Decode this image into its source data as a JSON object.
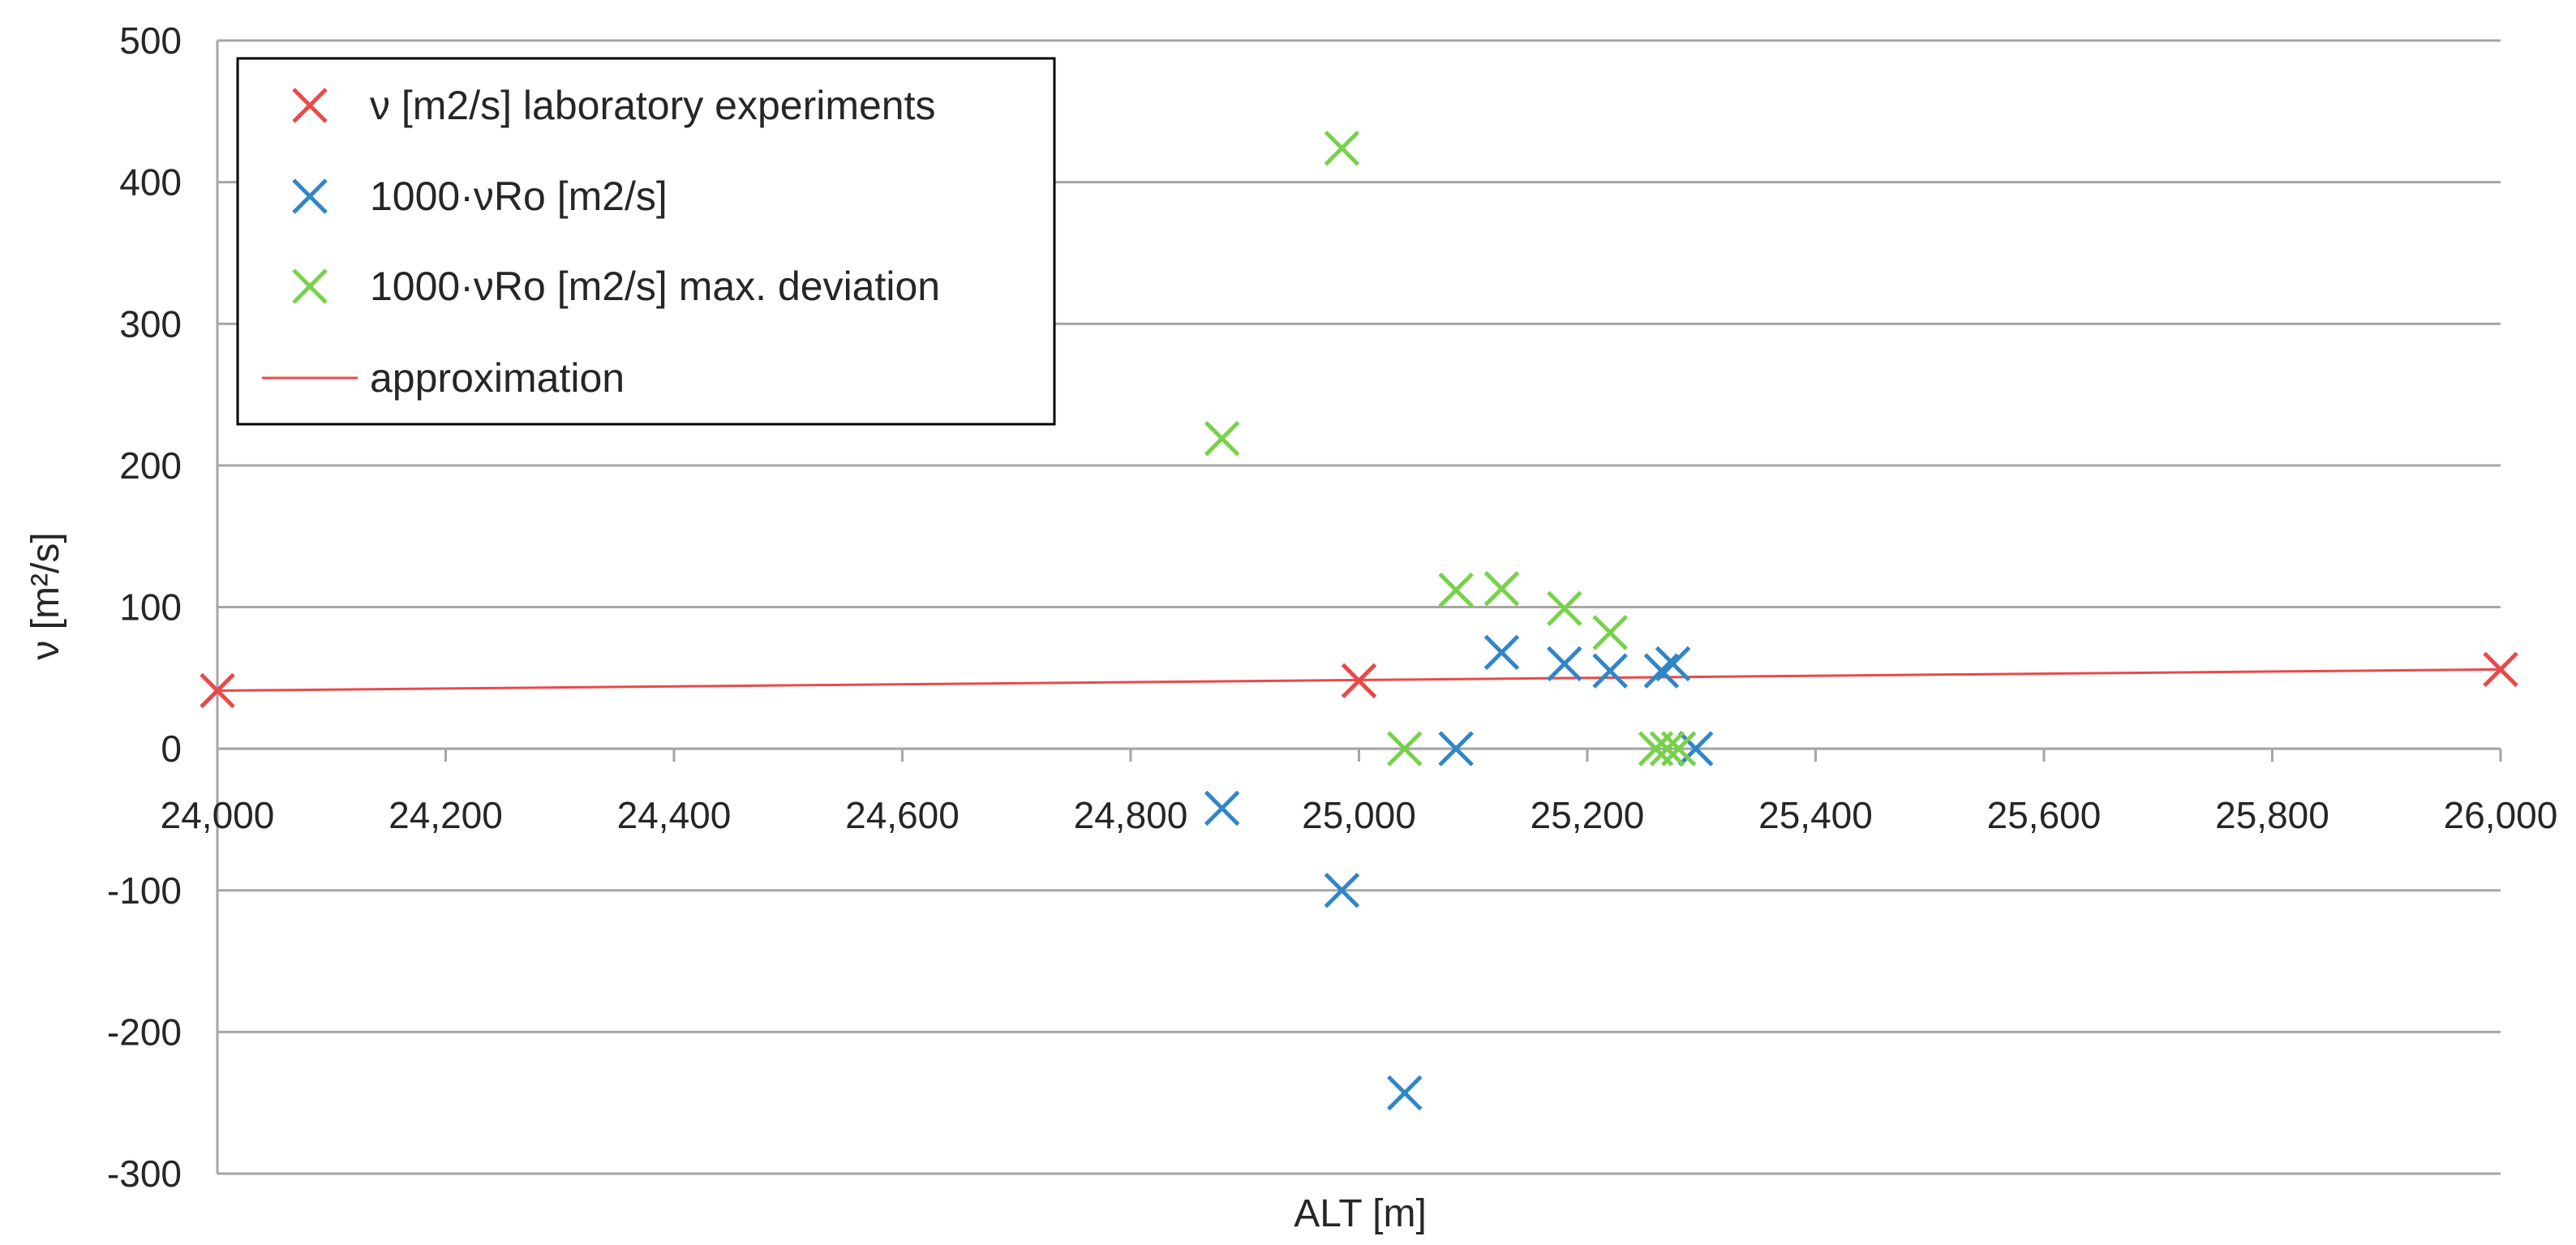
{
  "chart_data": {
    "type": "scatter",
    "title": "",
    "xlabel": "ALT [m]",
    "ylabel": "ν [m²/s]",
    "xlim": [
      24000,
      26000
    ],
    "ylim": [
      -300,
      500
    ],
    "xticks": [
      24000,
      24200,
      24400,
      24600,
      24800,
      25000,
      25200,
      25400,
      25600,
      25800,
      26000
    ],
    "yticks": [
      -300,
      -200,
      -100,
      0,
      100,
      200,
      300,
      400,
      500
    ],
    "xtick_labels": [
      "24,000",
      "24,200",
      "24,400",
      "24,600",
      "24,800",
      "25,000",
      "25,200",
      "25,400",
      "25,600",
      "25,800",
      "26,000"
    ],
    "ytick_labels": [
      "-300",
      "-200",
      "-100",
      "0",
      "100",
      "200",
      "300",
      "400",
      "500"
    ],
    "grid": "horizontal",
    "legend_position": "top-left",
    "series": [
      {
        "name": "ν [m2/s] laboratory experiments",
        "kind": "markers",
        "marker": "x",
        "color": "#e84a4a",
        "points": [
          [
            24000,
            41
          ],
          [
            25000,
            48
          ],
          [
            26000,
            56
          ]
        ]
      },
      {
        "name": "1000·νRo [m2/s]",
        "kind": "markers",
        "marker": "x",
        "color": "#2f86c8",
        "points": [
          [
            24880,
            -42
          ],
          [
            24985,
            -100
          ],
          [
            25040,
            -243
          ],
          [
            25085,
            0
          ],
          [
            25125,
            68
          ],
          [
            25180,
            60
          ],
          [
            25220,
            55
          ],
          [
            25265,
            55
          ],
          [
            25275,
            60
          ],
          [
            25295,
            0
          ]
        ]
      },
      {
        "name": "1000·νRo [m2/s] max. deviation",
        "kind": "markers",
        "marker": "x",
        "color": "#77d24a",
        "points": [
          [
            24880,
            219
          ],
          [
            24985,
            424
          ],
          [
            25040,
            0
          ],
          [
            25085,
            112
          ],
          [
            25125,
            113
          ],
          [
            25180,
            99
          ],
          [
            25220,
            82
          ],
          [
            25260,
            0
          ],
          [
            25270,
            0
          ],
          [
            25280,
            0
          ]
        ]
      },
      {
        "name": "approximation",
        "kind": "line",
        "color": "#e84a4a",
        "points": [
          [
            24000,
            41
          ],
          [
            26000,
            56
          ]
        ]
      }
    ]
  }
}
